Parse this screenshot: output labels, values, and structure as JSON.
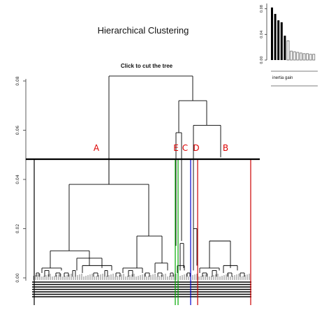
{
  "window": {
    "title": "Hierarchical Clustering",
    "subtitle": "Click to cut the tree"
  },
  "inertia_panel": {
    "label": "inertia gain"
  },
  "chart_data": [
    {
      "type": "bar",
      "name": "inertia-gain",
      "title": "",
      "xlabel": "inertia gain",
      "ylabel": "",
      "ylim": [
        0,
        0.09
      ],
      "y_ticks": [
        "0.00",
        "0.04",
        "0.08"
      ],
      "values": [
        0.082,
        0.072,
        0.062,
        0.059,
        0.038,
        0.03,
        0.014,
        0.013,
        0.012,
        0.011,
        0.01,
        0.01,
        0.009,
        0.009
      ],
      "highlighted_count": 5,
      "grid": false
    },
    {
      "type": "dendrogram",
      "name": "hierarchical-tree",
      "title": "Click to cut the tree",
      "ylim": [
        0,
        0.085
      ],
      "y_ticks": [
        "0.00",
        "0.02",
        "0.04",
        "0.06",
        "0.08"
      ],
      "cut_height": 0.049,
      "top_merges": [
        {
          "height": 0.082,
          "joins": "left-group + right-group"
        },
        {
          "height": 0.072,
          "joins": "E + C/D/B"
        },
        {
          "height": 0.062,
          "joins": "D + B"
        },
        {
          "height": 0.059,
          "joins": "E"
        },
        {
          "height": 0.038,
          "joins": "A subclusters"
        },
        {
          "height": 0.017,
          "joins": "A right subcluster"
        },
        {
          "height": 0.015,
          "joins": "B subcluster"
        },
        {
          "height": 0.014,
          "joins": "C"
        },
        {
          "height": 0.011,
          "joins": "A left subcluster"
        }
      ],
      "clusters": [
        {
          "label": "A",
          "color": "#000000"
        },
        {
          "label": "E",
          "color": "#00aa00"
        },
        {
          "label": "C",
          "color": "#0000cc"
        },
        {
          "label": "D",
          "color": "#cc0000"
        },
        {
          "label": "B",
          "color": "#cc0000"
        }
      ],
      "label_color": "#dd0000"
    }
  ]
}
